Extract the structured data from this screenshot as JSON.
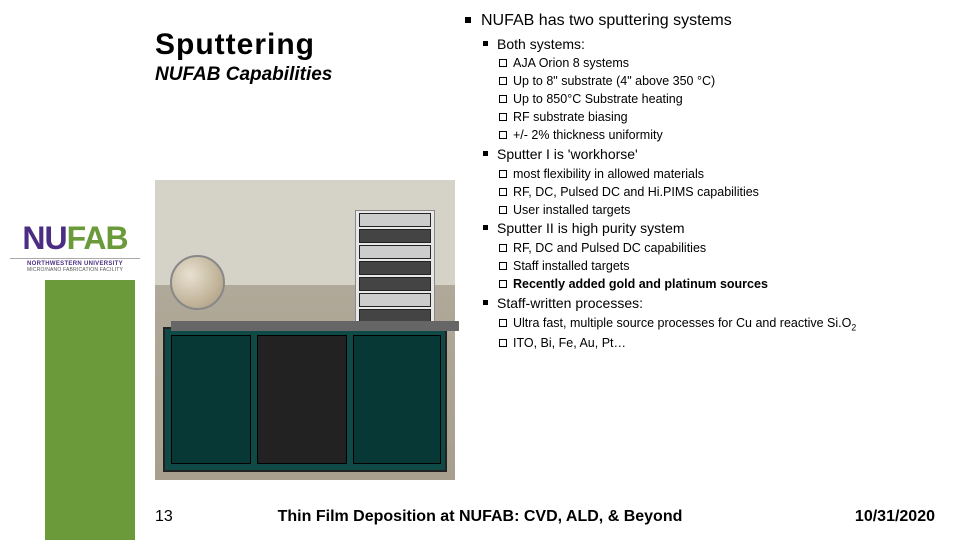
{
  "title": {
    "main": "Sputtering",
    "sub": "NUFAB Capabilities"
  },
  "heading": "NUFAB has two sputtering systems",
  "sections": [
    {
      "label": "Both systems:",
      "items": [
        {
          "text": "AJA Orion 8 systems",
          "marker": "box"
        },
        {
          "text": "Up to 8\" substrate (4\" above 350 °C)",
          "marker": "box"
        },
        {
          "text": "Up to 850°C Substrate heating",
          "marker": "box"
        },
        {
          "text": "RF substrate biasing",
          "marker": "box"
        },
        {
          "text": "+/- 2% thickness uniformity",
          "marker": "open"
        }
      ]
    },
    {
      "label": "Sputter I is 'workhorse'",
      "items": [
        {
          "text": "most flexibility in allowed materials",
          "marker": "box"
        },
        {
          "text": "RF, DC, Pulsed DC and Hi.PIMS capabilities",
          "marker": "box"
        },
        {
          "text": "User installed targets",
          "marker": "box"
        }
      ]
    },
    {
      "label": "Sputter II is high purity system",
      "items": [
        {
          "text": "RF, DC and Pulsed DC capabilities",
          "marker": "box"
        },
        {
          "text": "Staff installed targets",
          "marker": "box"
        },
        {
          "text": "Recently added gold and platinum sources",
          "marker": "box",
          "bold": true
        }
      ]
    },
    {
      "label": "Staff-written processes:",
      "items": [
        {
          "html": "Ultra fast, multiple source processes for Cu and reactive Si.O<sub>2</sub>",
          "marker": "box"
        },
        {
          "text": "ITO, Bi, Fe, Au, Pt…",
          "marker": "box"
        }
      ]
    }
  ],
  "logo": {
    "main_pre": "NU",
    "main_post": "FAB",
    "line1": "NORTHWESTERN UNIVERSITY",
    "line2": "MICRO/NANO FABRICATION FACILITY"
  },
  "footer": {
    "page": "13",
    "title": "Thin Film Deposition at NUFAB: CVD, ALD, & Beyond",
    "date": "10/31/2020"
  },
  "colors": {
    "green": "#6a9a3a",
    "purple": "#4b2e83",
    "teal": "#0f4a47"
  }
}
